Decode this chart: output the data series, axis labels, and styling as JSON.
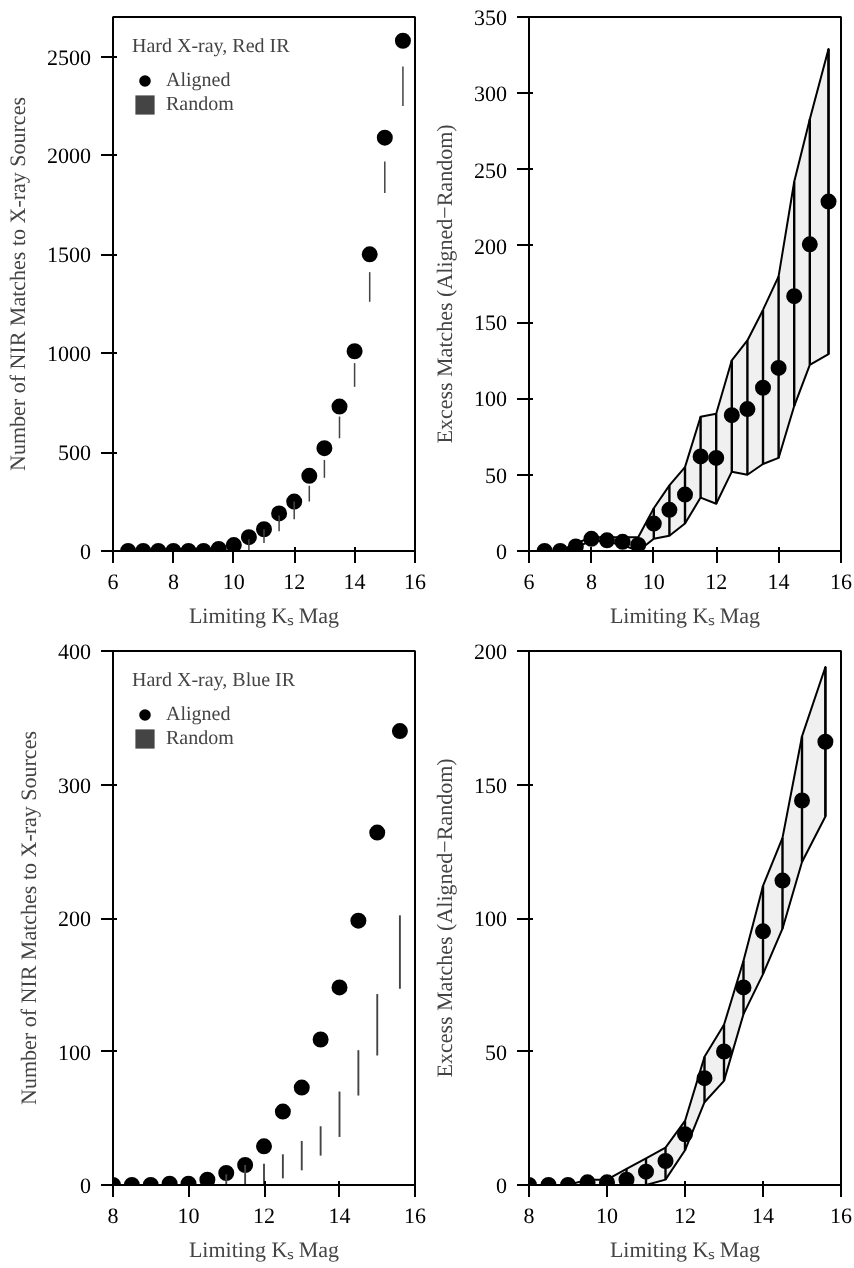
{
  "chart_data": [
    {
      "type": "scatter",
      "xlabel": "Limiting Kₛ Mag",
      "ylabel": "Number of NIR Matches to X-ray Sources",
      "legend_title": "Hard X-ray, Red IR",
      "legend": "top left",
      "xlim": [
        6,
        16
      ],
      "xticks": [
        6,
        8,
        10,
        12,
        14,
        16
      ],
      "ylim": [
        0,
        2700
      ],
      "yticks": [
        0,
        500,
        1000,
        1500,
        2000,
        2500
      ],
      "x": [
        6.5,
        7,
        7.5,
        8,
        8.5,
        9,
        9.5,
        10,
        10.5,
        11,
        11.5,
        12,
        12.5,
        13,
        13.5,
        14,
        14.5,
        15,
        15.6
      ],
      "series": [
        {
          "name": "Aligned",
          "color": "#000000",
          "marker": "circle",
          "values": [
            0,
            0,
            0,
            0,
            0,
            0,
            10,
            30,
            70,
            110,
            190,
            250,
            380,
            520,
            730,
            1010,
            1500,
            2090,
            2580
          ]
        },
        {
          "name": "Random",
          "type": "bar",
          "color": "#444444",
          "base": [
            null,
            null,
            null,
            null,
            null,
            null,
            null,
            null,
            0,
            40,
            100,
            160,
            250,
            370,
            570,
            830,
            1260,
            1810,
            2250
          ],
          "values": [
            null,
            null,
            null,
            null,
            null,
            null,
            null,
            null,
            60,
            70,
            80,
            90,
            80,
            90,
            110,
            120,
            150,
            160,
            200
          ]
        }
      ]
    },
    {
      "type": "scatter",
      "xlabel": "Limiting Kₛ Mag",
      "ylabel": "Excess Matches (Aligned−Random)",
      "xlim": [
        6,
        16
      ],
      "xticks": [
        6,
        8,
        10,
        12,
        14,
        16
      ],
      "ylim": [
        0,
        350
      ],
      "yticks": [
        0,
        50,
        100,
        150,
        200,
        250,
        300,
        350
      ],
      "x": [
        6.5,
        7,
        7.5,
        8,
        8.5,
        9,
        9.5,
        10,
        10.5,
        11,
        11.5,
        12,
        12.5,
        13,
        13.5,
        14,
        14.5,
        15,
        15.6
      ],
      "series": [
        {
          "color": "#000000",
          "marker": "circle",
          "values": [
            0,
            0,
            3,
            8,
            7,
            6,
            4,
            18,
            27,
            37,
            62,
            61,
            89,
            93,
            107,
            120,
            167,
            201,
            229
          ],
          "upper": [
            0,
            0,
            5,
            9,
            9,
            9,
            9,
            28,
            43,
            55,
            88,
            90,
            125,
            138,
            158,
            180,
            242,
            283,
            329
          ],
          "lower": [
            0,
            0,
            2,
            7,
            6,
            4,
            0,
            8,
            10,
            18,
            35,
            31,
            52,
            50,
            57,
            61,
            95,
            122,
            129
          ],
          "errors": [
            [
              0,
              0
            ],
            [
              0,
              0
            ],
            [
              2,
              5
            ],
            [
              7,
              9
            ],
            [
              6,
              9
            ],
            [
              4,
              9
            ],
            [
              0,
              9
            ],
            [
              8,
              28
            ],
            [
              10,
              43
            ],
            [
              18,
              55
            ],
            [
              35,
              88
            ],
            [
              31,
              90
            ],
            [
              52,
              125
            ],
            [
              50,
              138
            ],
            [
              57,
              158
            ],
            [
              61,
              180
            ],
            [
              95,
              242
            ],
            [
              122,
              283
            ],
            [
              129,
              329
            ]
          ]
        }
      ]
    },
    {
      "type": "scatter",
      "xlabel": "Limiting Kₛ Mag",
      "ylabel": "Number of NIR Matches to X-ray Sources",
      "legend_title": "Hard X-ray, Blue IR",
      "legend": "top left",
      "xlim": [
        8,
        16
      ],
      "xticks": [
        8,
        10,
        12,
        14,
        16
      ],
      "ylim": [
        0,
        400
      ],
      "yticks": [
        0,
        100,
        200,
        300,
        400
      ],
      "x": [
        8,
        8.5,
        9,
        9.5,
        10,
        10.5,
        11,
        11.5,
        12,
        12.5,
        13,
        13.5,
        14,
        14.5,
        15,
        15.6
      ],
      "series": [
        {
          "name": "Aligned",
          "color": "#000000",
          "marker": "circle",
          "values": [
            0,
            0,
            0,
            1,
            1,
            4,
            9,
            15,
            29,
            55,
            73,
            109,
            148,
            198,
            264,
            340
          ]
        },
        {
          "name": "Random",
          "type": "bar",
          "color": "#444444",
          "base": [
            null,
            null,
            null,
            null,
            null,
            null,
            0,
            0,
            0,
            5,
            11,
            22,
            36,
            67,
            97,
            147
          ],
          "values": [
            null,
            null,
            null,
            null,
            null,
            null,
            8,
            15,
            16,
            18,
            22,
            22,
            34,
            34,
            46,
            55
          ]
        }
      ]
    },
    {
      "type": "scatter",
      "xlabel": "Limiting Kₛ Mag",
      "ylabel": "Excess Matches (Aligned−Random)",
      "xlim": [
        8,
        16
      ],
      "xticks": [
        8,
        10,
        12,
        14,
        16
      ],
      "ylim": [
        0,
        200
      ],
      "yticks": [
        0,
        50,
        100,
        150,
        200
      ],
      "x": [
        8,
        8.5,
        9,
        9.5,
        10,
        10.5,
        11,
        11.5,
        12,
        12.5,
        13,
        13.5,
        14,
        14.5,
        15,
        15.6
      ],
      "series": [
        {
          "color": "#000000",
          "marker": "circle",
          "values": [
            0,
            0,
            0,
            1,
            1,
            2,
            5,
            9,
            19,
            40,
            50,
            74,
            95,
            114,
            144,
            166
          ],
          "upper": [
            0,
            0,
            0,
            2,
            2,
            6,
            10,
            14,
            24,
            48,
            60,
            84,
            112,
            130,
            168,
            194
          ],
          "lower": [
            0,
            0,
            0,
            0,
            0,
            0,
            0,
            2,
            13,
            31,
            39,
            64,
            79,
            96,
            121,
            138
          ],
          "errors": [
            [
              0,
              0
            ],
            [
              0,
              0
            ],
            [
              0,
              0
            ],
            [
              0,
              2
            ],
            [
              0,
              2
            ],
            [
              0,
              6
            ],
            [
              0,
              10
            ],
            [
              2,
              14
            ],
            [
              13,
              24
            ],
            [
              31,
              48
            ],
            [
              39,
              60
            ],
            [
              64,
              84
            ],
            [
              79,
              112
            ],
            [
              96,
              130
            ],
            [
              121,
              168
            ],
            [
              138,
              194
            ]
          ]
        }
      ]
    }
  ]
}
